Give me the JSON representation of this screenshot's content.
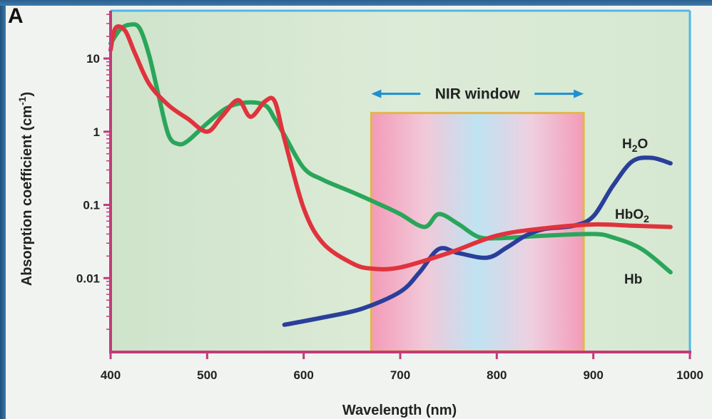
{
  "panel_label": "A",
  "chart_data": {
    "type": "line",
    "title": "",
    "xlabel": "Wavelength (nm)",
    "ylabel": "Absorption coefficient (cm⁻¹)",
    "xlim": [
      400,
      1000
    ],
    "ylim": [
      0.001,
      45
    ],
    "y_scale": "log",
    "x_ticks": [
      400,
      500,
      600,
      700,
      800,
      900,
      1000
    ],
    "y_ticks": [
      {
        "value": 10,
        "label": "10"
      },
      {
        "value": 1,
        "label": "1"
      },
      {
        "value": 0.1,
        "label": "0.1"
      },
      {
        "value": 0.01,
        "label": "0.01"
      }
    ],
    "grid": false,
    "annotation": {
      "text": "NIR window",
      "x_range": [
        670,
        890
      ],
      "y_top": 1.8
    },
    "series": [
      {
        "name": "Hb",
        "color": "#2aa65a",
        "label": "Hb",
        "x": [
          400,
          410,
          420,
          430,
          440,
          450,
          460,
          470,
          480,
          500,
          520,
          540,
          560,
          570,
          580,
          600,
          620,
          650,
          680,
          700,
          725,
          740,
          760,
          780,
          800,
          850,
          900,
          920,
          950,
          980
        ],
        "y": [
          16,
          25,
          29,
          26,
          11,
          3.0,
          0.9,
          0.68,
          0.75,
          1.3,
          2.1,
          2.5,
          2.3,
          1.5,
          0.9,
          0.32,
          0.22,
          0.15,
          0.1,
          0.075,
          0.05,
          0.075,
          0.055,
          0.037,
          0.035,
          0.038,
          0.04,
          0.036,
          0.025,
          0.012
        ]
      },
      {
        "name": "HbO2",
        "color": "#e0333c",
        "label": "HbO2",
        "x": [
          400,
          405,
          415,
          425,
          440,
          460,
          480,
          500,
          515,
          532,
          545,
          560,
          570,
          580,
          600,
          620,
          650,
          670,
          700,
          750,
          800,
          850,
          900,
          940,
          980
        ],
        "y": [
          13,
          26,
          24,
          12,
          4.5,
          2.3,
          1.5,
          1.0,
          1.6,
          2.7,
          1.6,
          2.6,
          2.6,
          0.8,
          0.09,
          0.03,
          0.016,
          0.0135,
          0.014,
          0.022,
          0.038,
          0.048,
          0.054,
          0.052,
          0.05
        ]
      },
      {
        "name": "H2O",
        "color": "#2a3f9a",
        "label": "H2O",
        "x": [
          580,
          620,
          660,
          700,
          720,
          740,
          760,
          790,
          810,
          830,
          850,
          880,
          900,
          920,
          940,
          960,
          980
        ],
        "y": [
          0.0023,
          0.0029,
          0.0038,
          0.0065,
          0.012,
          0.025,
          0.022,
          0.019,
          0.026,
          0.038,
          0.047,
          0.052,
          0.07,
          0.18,
          0.39,
          0.44,
          0.37
        ]
      }
    ]
  }
}
